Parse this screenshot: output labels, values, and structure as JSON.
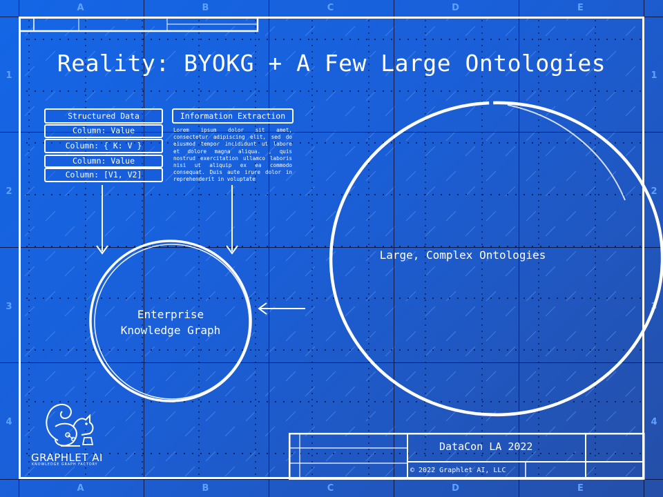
{
  "title": "Reality: BYOKG + A Few Large Ontologies",
  "frame": {
    "columns": [
      "A",
      "B",
      "C",
      "D",
      "E"
    ],
    "rows": [
      "1",
      "2",
      "3",
      "4"
    ]
  },
  "structured_data": {
    "header": "Structured Data",
    "rows": [
      "Column: Value",
      "Column: { K: V }",
      "Column: Value",
      "Column: [V1, V2]"
    ]
  },
  "information_extraction": {
    "header": "Information Extraction",
    "body": "Lorem ipsum dolor sit amet, consectetur adipiscing elit, sed do eiusmod tempor incididunt ut labore et dolore magna aliqua. , quis nostrud exercitation ullamco laboris nisi ut aliquip ex ea commodo consequat. Duis aute irure dolor in reprehenderit in voluptate"
  },
  "enterprise_kg": {
    "line1": "Enterprise",
    "line2": "Knowledge Graph"
  },
  "ontologies": {
    "label": "Large, Complex Ontologies"
  },
  "logo": {
    "name": "GRAPHLET AI",
    "tagline": "KNOWLEDGE GRAPH FACTORY"
  },
  "title_block": {
    "event": "DataCon LA 2022",
    "copyright": "© 2022 Graphlet AI, LLC"
  },
  "colors": {
    "background_start": "#1466e6",
    "background_end": "#254fa8",
    "ink": "#ffffff",
    "frame_line": "#07184a",
    "grid_label": "#5ea2ff"
  }
}
